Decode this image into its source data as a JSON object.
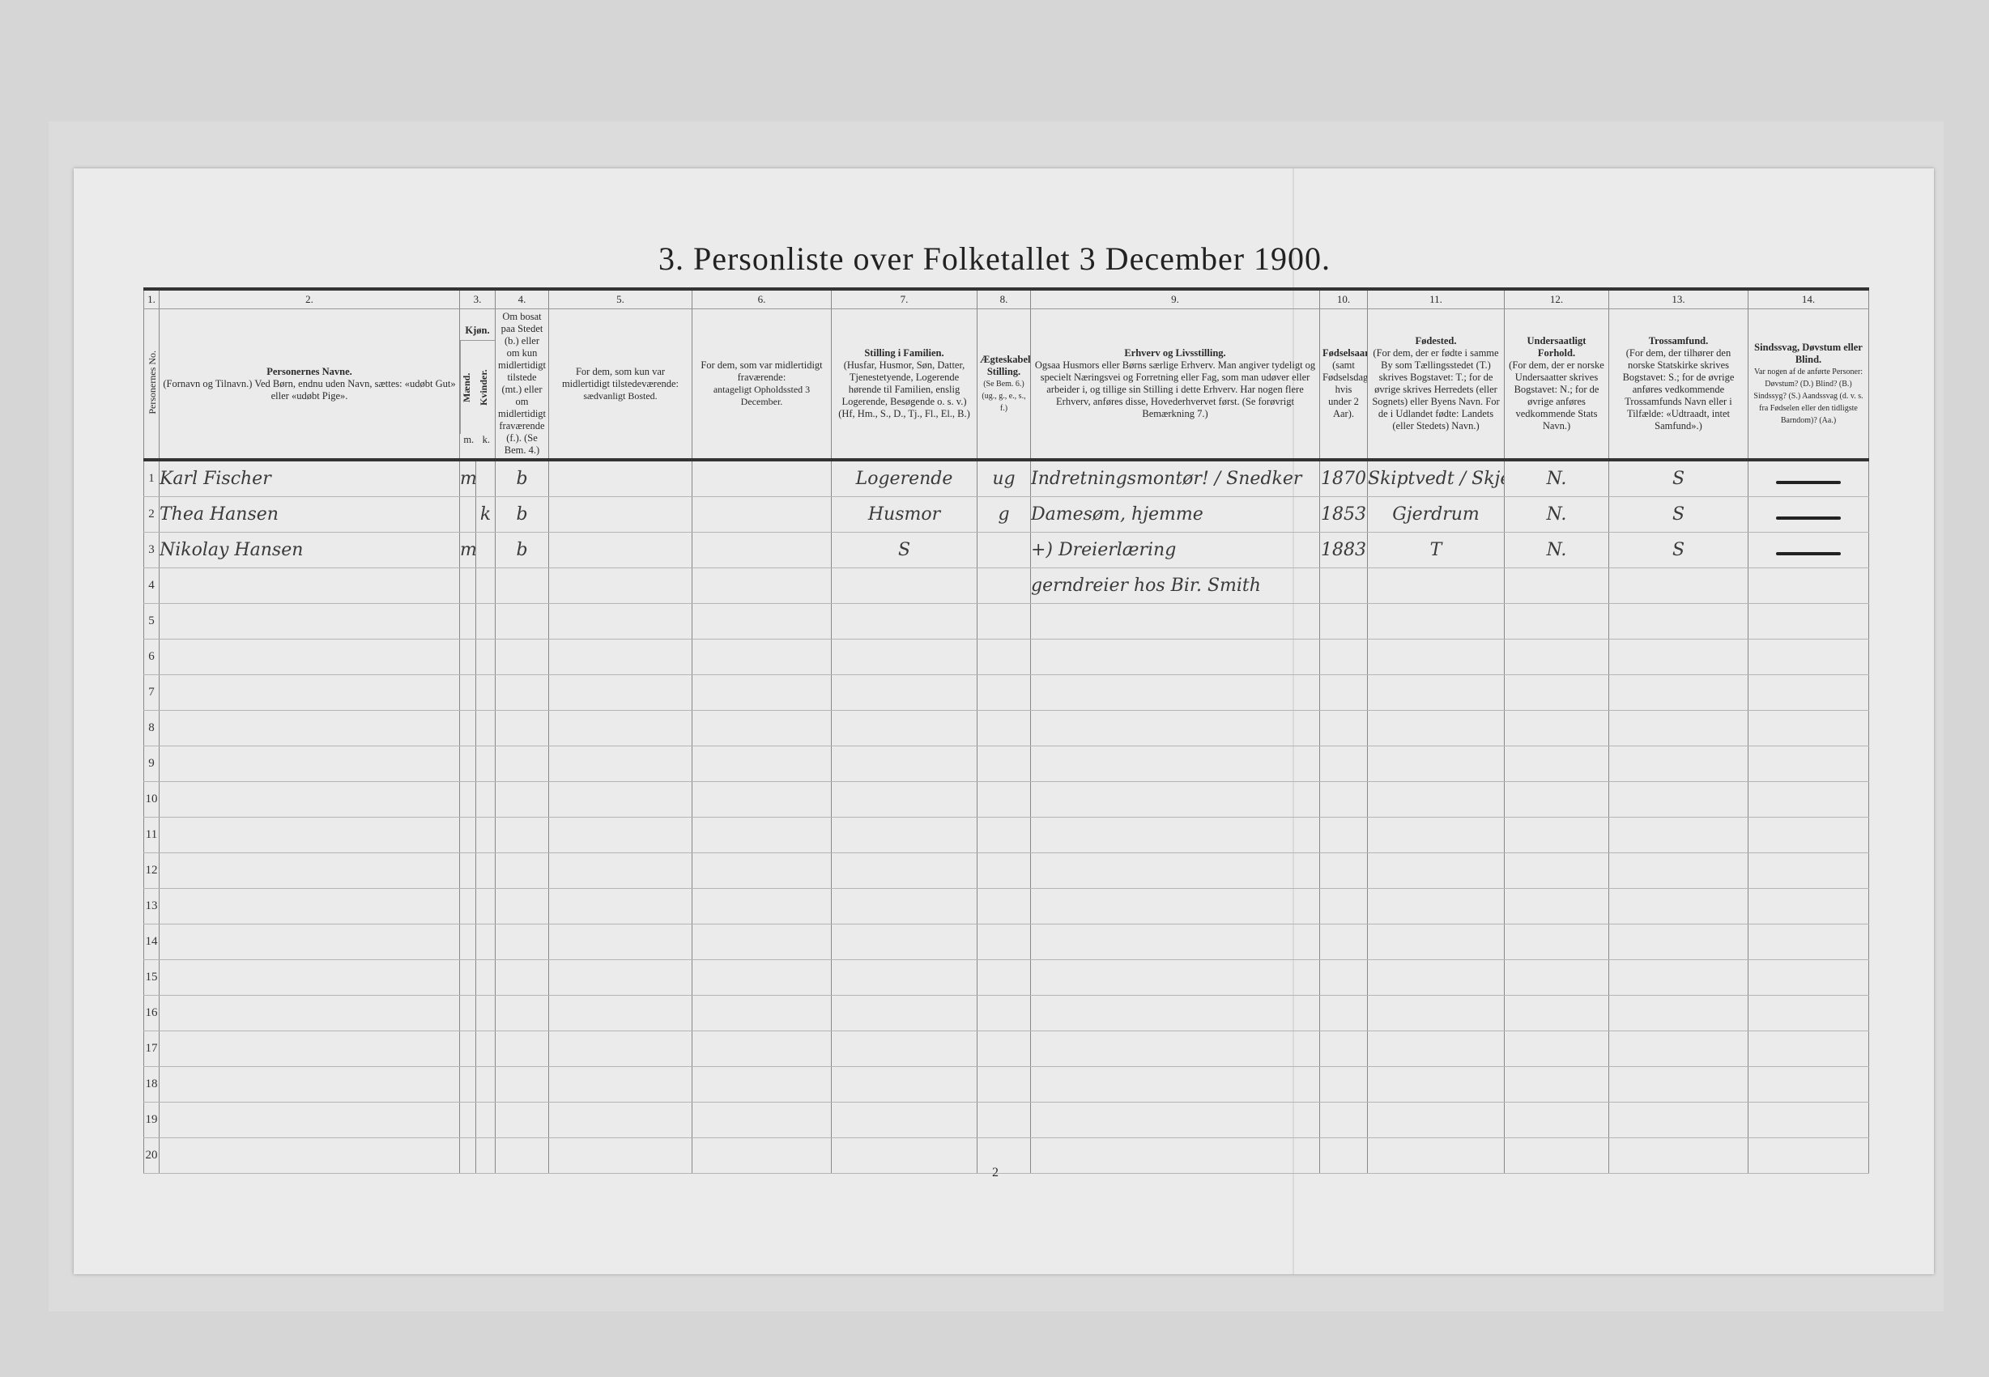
{
  "title": "3. Personliste over Folketallet 3 December 1900.",
  "page_number": "2",
  "columns": [
    {
      "num": "1.",
      "label": "Personernes No."
    },
    {
      "num": "2.",
      "title": "Personernes Navne.",
      "text": "(Fornavn og Tilnavn.) Ved Børn, endnu uden Navn, sættes: «udøbt Gut» eller «udøbt Pige»."
    },
    {
      "num": "3.",
      "title": "Kjøn.",
      "m": "Mænd.",
      "k": "Kvinder.",
      "m_abbr": "m.",
      "k_abbr": "k."
    },
    {
      "num": "4.",
      "text": "Om bosat paa Stedet (b.) eller om kun midlertidigt tilstede (mt.) eller om midlertidigt fraværende (f.). (Se Bem. 4.)"
    },
    {
      "num": "5.",
      "text": "For dem, som kun var midlertidigt tilstedeværende:",
      "sub": "sædvanligt Bosted."
    },
    {
      "num": "6.",
      "text": "For dem, som var midlertidigt fraværende:",
      "sub": "antageligt Opholdssted 3 December."
    },
    {
      "num": "7.",
      "title": "Stilling i Familien.",
      "text": "(Husfar, Husmor, Søn, Datter, Tjenestetyende, Logerende hørende til Familien, enslig Logerende, Besøgende o. s. v.) (Hf, Hm., S., D., Tj., Fl., El., B.)"
    },
    {
      "num": "8.",
      "title": "Ægteskabelig Stilling.",
      "text": "(Se Bem. 6.) (ug., g., e., s., f.)"
    },
    {
      "num": "9.",
      "title": "Erhverv og Livsstilling.",
      "text": "Ogsaa Husmors eller Børns særlige Erhverv. Man angiver tydeligt og specielt Næringsvei og Forretning eller Fag, som man udøver eller arbeider i, og tillige sin Stilling i dette Erhverv. Har nogen flere Erhverv, anføres disse, Hovederhvervet først. (Se forøvrigt Bemærkning 7.)"
    },
    {
      "num": "10.",
      "title": "Fødselsaar",
      "text": "(samt Fødselsdag, hvis under 2 Aar)."
    },
    {
      "num": "11.",
      "title": "Fødested.",
      "text": "(For dem, der er fødte i samme By som Tællingsstedet (T.) skrives Bogstavet: T.; for de øvrige skrives Herredets (eller Sognets) eller Byens Navn. For de i Udlandet fødte: Landets (eller Stedets) Navn.)"
    },
    {
      "num": "12.",
      "title": "Undersaatligt Forhold.",
      "text": "(For dem, der er norske Undersaatter skrives Bogstavet: N.; for de øvrige anføres vedkommende Stats Navn.)"
    },
    {
      "num": "13.",
      "title": "Trossamfund.",
      "text": "(For dem, der tilhører den norske Statskirke skrives Bogstavet: S.; for de øvrige anføres vedkommende Trossamfunds Navn eller i Tilfælde: «Udtraadt, intet Samfund».)"
    },
    {
      "num": "14.",
      "title": "Sindssvag, Døvstum eller Blind.",
      "text": "Var nogen af de anførte Personer: Døvstum? (D.) Blind? (B.) Sindssyg? (S.) Aandssvag (d. v. s. fra Fødselen eller den tidligste Barndom)? (Aa.)"
    }
  ],
  "rows": [
    {
      "no": "1",
      "name": "Karl Fischer",
      "m": "m",
      "k": "",
      "bosat": "b",
      "c5": "",
      "c6": "",
      "stilling": "Logerende",
      "egte": "ug",
      "erhverv": "Indretningsmontør! / Snedker",
      "aar": "1870",
      "fodested": "Skiptvedt / Skjeberg",
      "undersaat": "N.",
      "tro": "S",
      "c14": "dash"
    },
    {
      "no": "2",
      "name": "Thea Hansen",
      "m": "",
      "k": "k",
      "bosat": "b",
      "c5": "",
      "c6": "",
      "stilling": "Husmor",
      "egte": "g",
      "erhverv": "Damesøm, hjemme",
      "aar": "1853",
      "fodested": "Gjerdrum",
      "undersaat": "N.",
      "tro": "S",
      "c14": "dash"
    },
    {
      "no": "3",
      "name": "Nikolay Hansen",
      "m": "m",
      "k": "",
      "bosat": "b",
      "c5": "",
      "c6": "",
      "stilling": "S",
      "egte": "",
      "erhverv": "+) Dreierlæring",
      "aar": "1883",
      "fodested": "T",
      "undersaat": "N.",
      "tro": "S",
      "c14": "dash"
    },
    {
      "no": "4",
      "erhverv": "gerndreier hos Bir. Smith"
    },
    {
      "no": "5"
    },
    {
      "no": "6"
    },
    {
      "no": "7"
    },
    {
      "no": "8"
    },
    {
      "no": "9"
    },
    {
      "no": "10"
    },
    {
      "no": "11"
    },
    {
      "no": "12"
    },
    {
      "no": "13"
    },
    {
      "no": "14"
    },
    {
      "no": "15"
    },
    {
      "no": "16"
    },
    {
      "no": "17"
    },
    {
      "no": "18"
    },
    {
      "no": "19"
    },
    {
      "no": "20"
    }
  ]
}
